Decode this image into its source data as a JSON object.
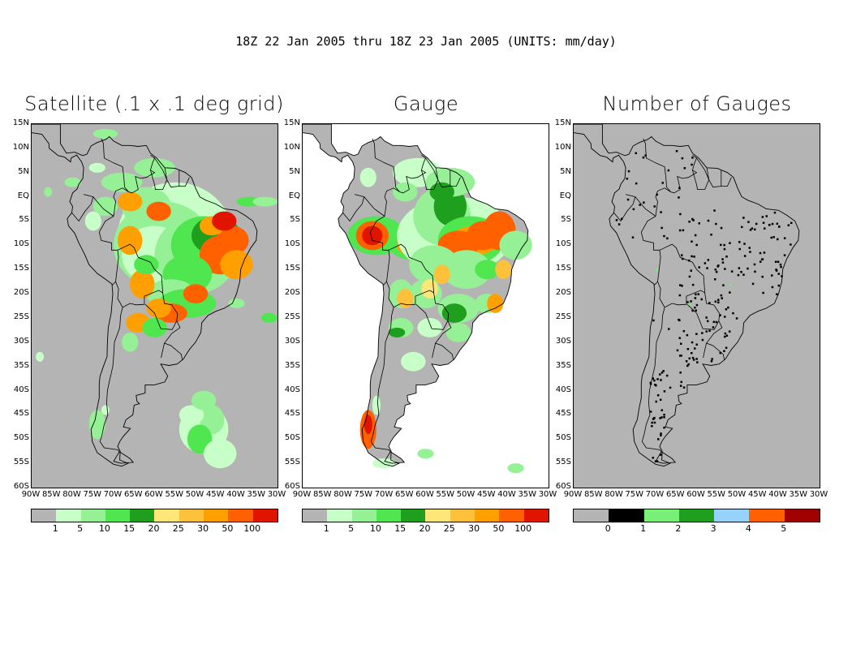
{
  "title": "18Z 22 Jan 2005 thru 18Z 23 Jan 2005 (UNITS: mm/day)",
  "panels": [
    {
      "id": "satellite",
      "title": "Satellite (.1 x .1 deg grid)"
    },
    {
      "id": "gauge",
      "title": "Gauge"
    },
    {
      "id": "count",
      "title": "Number of Gauges"
    }
  ],
  "lat_labels": [
    "15N",
    "10N",
    "5N",
    "EQ",
    "5S",
    "10S",
    "15S",
    "20S",
    "25S",
    "30S",
    "35S",
    "40S",
    "45S",
    "50S",
    "55S",
    "60S"
  ],
  "lon_labels": [
    "90W",
    "85W",
    "80W",
    "75W",
    "70W",
    "65W",
    "60W",
    "55W",
    "50W",
    "45W",
    "40W",
    "35W",
    "30W"
  ],
  "extent": {
    "lon": [
      -90,
      -30
    ],
    "lat": [
      -60,
      15
    ]
  },
  "colors": {
    "background": "#b4b4b4",
    "land_outline": "#000000"
  },
  "precip_colorbar": {
    "colors": [
      "#b4b4b4",
      "#c8ffc8",
      "#96f096",
      "#50e650",
      "#1ea01e",
      "#ffe678",
      "#ffc03c",
      "#ffa000",
      "#ff6000",
      "#e11400"
    ],
    "labels": [
      "1",
      "5",
      "10",
      "15",
      "20",
      "25",
      "30",
      "50",
      "100"
    ]
  },
  "count_colorbar": {
    "colors": [
      "#b4b4b4",
      "#000000",
      "#78f078",
      "#1ea01e",
      "#96d2fa",
      "#ff6000",
      "#a00000"
    ],
    "labels": [
      "0",
      "1",
      "2",
      "3",
      "4",
      "5"
    ]
  },
  "chart_data": [
    {
      "type": "heatmap",
      "title": "Satellite (.1 x .1 deg grid)",
      "units": "mm/day",
      "xlim": [
        -90,
        -30
      ],
      "ylim": [
        -60,
        15
      ],
      "features": [
        {
          "region": "Amazon basin / central Brazil",
          "lon": [
            -70,
            -36
          ],
          "lat": [
            -22,
            5
          ],
          "max_class": "50-100"
        },
        {
          "region": "Northeast Brazil core",
          "lon": [
            -50,
            -37
          ],
          "lat": [
            -16,
            -4
          ],
          "max_class": "30-50"
        },
        {
          "region": "Southern Brazil / Paraguay",
          "lon": [
            -64,
            -44
          ],
          "lat": [
            -27,
            -17
          ],
          "max_class": "30-50"
        },
        {
          "region": "South Atlantic band",
          "lon": [
            -58,
            -43
          ],
          "lat": [
            -58,
            -41
          ],
          "max_class": "15-20"
        }
      ]
    },
    {
      "type": "heatmap",
      "title": "Gauge",
      "units": "mm/day",
      "xlim": [
        -90,
        -30
      ],
      "ylim": [
        -60,
        15
      ],
      "features": [
        {
          "region": "Western Amazon (Peru/Brazil border)",
          "lon": [
            -76,
            -70
          ],
          "lat": [
            -11,
            -6
          ],
          "max_class": "50-100"
        },
        {
          "region": "Central-east Brazil",
          "lon": [
            -56,
            -43
          ],
          "lat": [
            -12,
            -4
          ],
          "max_class": "30-50"
        },
        {
          "region": "Southern Chile",
          "lon": [
            -76,
            -73
          ],
          "lat": [
            -51,
            -46
          ],
          "max_class": "30-50"
        },
        {
          "region": "South-central Brazil",
          "lon": [
            -66,
            -40
          ],
          "lat": [
            -24,
            -13
          ],
          "max_class": "20-30"
        }
      ]
    },
    {
      "type": "heatmap",
      "title": "Number of Gauges",
      "units": "count",
      "xlim": [
        -90,
        -30
      ],
      "ylim": [
        -60,
        15
      ],
      "features": [
        {
          "region": "Scattered stations over land",
          "value": 1
        },
        {
          "region": "Isolated cells",
          "value": 2
        }
      ]
    }
  ]
}
